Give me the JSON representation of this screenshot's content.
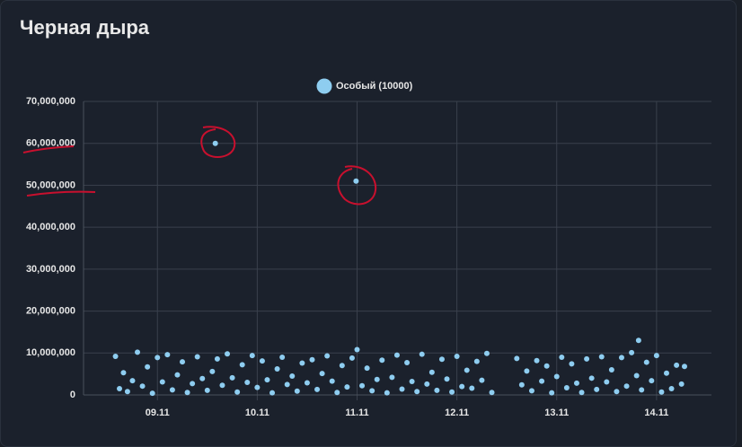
{
  "header": {
    "title": "Черная дыра"
  },
  "chart_data": {
    "type": "scatter",
    "series": [
      {
        "name": "Особый (10000)",
        "color": "#8ecdf0",
        "x": [
          8.58,
          8.62,
          8.66,
          8.7,
          8.75,
          8.8,
          8.85,
          8.9,
          8.95,
          9.0,
          9.05,
          9.1,
          9.15,
          9.2,
          9.25,
          9.3,
          9.35,
          9.4,
          9.45,
          9.5,
          9.55,
          9.58,
          9.6,
          9.65,
          9.7,
          9.75,
          9.8,
          9.85,
          9.9,
          9.95,
          10.0,
          10.05,
          10.1,
          10.15,
          10.2,
          10.25,
          10.3,
          10.35,
          10.4,
          10.45,
          10.5,
          10.55,
          10.6,
          10.65,
          10.7,
          10.75,
          10.8,
          10.85,
          10.9,
          10.95,
          10.99,
          11.0,
          11.05,
          11.1,
          11.15,
          11.2,
          11.25,
          11.3,
          11.35,
          11.4,
          11.45,
          11.5,
          11.55,
          11.6,
          11.65,
          11.7,
          11.75,
          11.8,
          11.85,
          11.9,
          11.95,
          12.0,
          12.05,
          12.1,
          12.15,
          12.2,
          12.25,
          12.3,
          12.35,
          12.6,
          12.65,
          12.7,
          12.75,
          12.8,
          12.85,
          12.9,
          12.95,
          13.0,
          13.05,
          13.1,
          13.15,
          13.2,
          13.25,
          13.3,
          13.35,
          13.4,
          13.45,
          13.5,
          13.55,
          13.6,
          13.65,
          13.7,
          13.75,
          13.8,
          13.82,
          13.85,
          13.9,
          13.95,
          14.0,
          14.05,
          14.1,
          14.15,
          14.2,
          14.25,
          14.28
        ],
        "values": [
          9200000,
          1500000,
          5300000,
          800000,
          3400000,
          10200000,
          2100000,
          6700000,
          400000,
          8900000,
          3100000,
          9600000,
          1200000,
          4800000,
          7900000,
          600000,
          2700000,
          9100000,
          3900000,
          1100000,
          5600000,
          60000000,
          8600000,
          2300000,
          9800000,
          4100000,
          700000,
          7200000,
          3000000,
          9400000,
          1800000,
          8100000,
          3600000,
          500000,
          6200000,
          9000000,
          2500000,
          4500000,
          900000,
          7600000,
          2900000,
          8400000,
          1300000,
          5100000,
          9300000,
          3300000,
          600000,
          7000000,
          1900000,
          8800000,
          51000000,
          10800000,
          2200000,
          6400000,
          1000000,
          3700000,
          8300000,
          500000,
          4200000,
          9500000,
          1400000,
          7700000,
          3200000,
          800000,
          9700000,
          2600000,
          5400000,
          1100000,
          8500000,
          3800000,
          700000,
          9200000,
          2000000,
          5900000,
          1600000,
          8000000,
          3500000,
          9900000,
          600000,
          8700000,
          2400000,
          5700000,
          1000000,
          8200000,
          3300000,
          6900000,
          500000,
          4400000,
          9000000,
          1700000,
          7400000,
          2800000,
          600000,
          8600000,
          4000000,
          1300000,
          9100000,
          3100000,
          6000000,
          800000,
          8900000,
          2100000,
          10100000,
          4600000,
          13000000,
          1200000,
          7800000,
          3400000,
          9400000,
          700000,
          5200000,
          1500000,
          7100000,
          2600000,
          6800000
        ]
      }
    ],
    "xlim": [
      8.26,
      14.55
    ],
    "xticks": [
      {
        "value": 9,
        "label": "09.11"
      },
      {
        "value": 10,
        "label": "10.11"
      },
      {
        "value": 11,
        "label": "11.11"
      },
      {
        "value": 12,
        "label": "12.11"
      },
      {
        "value": 13,
        "label": "13.11"
      },
      {
        "value": 14,
        "label": "14.11"
      }
    ],
    "ylim": [
      0,
      70000000
    ],
    "yticks": [
      0,
      {
        "value": 10000000,
        "label": "10,000,000"
      },
      {
        "value": 20000000,
        "label": "20,000,000"
      },
      {
        "value": 30000000,
        "label": "30,000,000"
      },
      {
        "value": 40000000,
        "label": "40,000,000"
      },
      {
        "value": 50000000,
        "label": "50,000,000"
      },
      {
        "value": 60000000,
        "label": "60,000,000"
      },
      {
        "value": 70000000,
        "label": "70,000,000"
      }
    ],
    "grid": true,
    "legend": "top"
  }
}
